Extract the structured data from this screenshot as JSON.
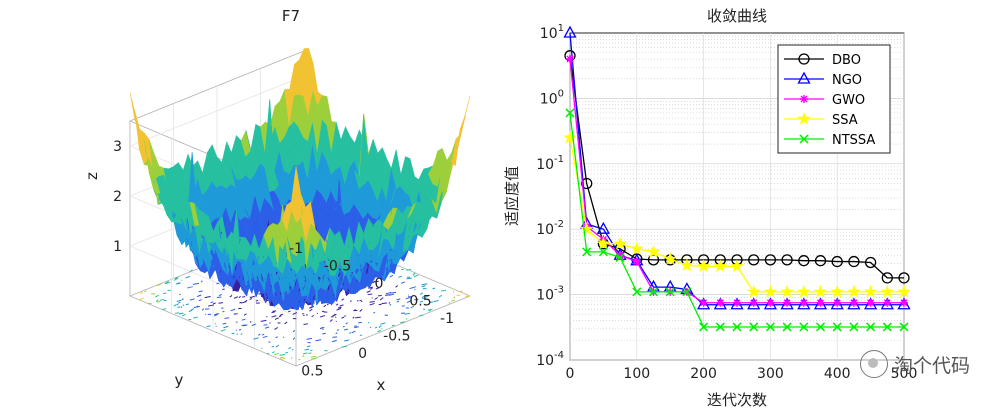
{
  "chart_data": [
    {
      "type": "surface",
      "title": "F7",
      "xlabel": "x",
      "ylabel": "y",
      "zlabel": "z",
      "xlim": [
        -1,
        1
      ],
      "ylim": [
        -1,
        1
      ],
      "zlim": [
        0,
        3.5
      ],
      "x_ticks": [
        "-1",
        "-0.5",
        "0",
        "0.5"
      ],
      "y_ticks": [
        "-1",
        "-0.5",
        "0",
        "0.5"
      ],
      "z_ticks": [
        "1",
        "2",
        "3"
      ],
      "colormap": [
        "#3a1fa0",
        "#2c5fe8",
        "#1e9ad9",
        "#26c0a0",
        "#9ccf3a",
        "#f1c232"
      ]
    },
    {
      "type": "line",
      "title": "收敛曲线",
      "xlabel": "迭代次数",
      "ylabel": "适应度值",
      "yscale": "log",
      "xlim": [
        0,
        500
      ],
      "ylim": [
        0.0001,
        10
      ],
      "x_ticks": [
        "0",
        "100",
        "200",
        "300",
        "400",
        "500"
      ],
      "y_ticks": [
        "10-4",
        "10-3",
        "10-2",
        "10-1",
        "100",
        "101"
      ],
      "grid": true,
      "legend_position": "top-right",
      "series": [
        {
          "name": "DBO",
          "color": "#000000",
          "marker": "circle",
          "x": [
            0,
            25,
            50,
            75,
            100,
            125,
            150,
            175,
            200,
            225,
            250,
            275,
            300,
            325,
            350,
            375,
            400,
            425,
            450,
            475,
            500
          ],
          "y": [
            4.5,
            0.05,
            0.006,
            0.005,
            0.0035,
            0.0034,
            0.0034,
            0.0034,
            0.0034,
            0.0034,
            0.0034,
            0.0034,
            0.0034,
            0.0034,
            0.0033,
            0.0033,
            0.0032,
            0.0032,
            0.0031,
            0.0018,
            0.0018
          ]
        },
        {
          "name": "NGO",
          "color": "#0000ff",
          "marker": "triangle",
          "x": [
            0,
            25,
            50,
            75,
            100,
            125,
            150,
            175,
            200,
            225,
            250,
            275,
            300,
            325,
            350,
            375,
            400,
            425,
            450,
            475,
            500
          ],
          "y": [
            10,
            0.012,
            0.01,
            0.004,
            0.0033,
            0.0013,
            0.0013,
            0.0012,
            0.0007,
            0.0007,
            0.0007,
            0.0007,
            0.0007,
            0.0007,
            0.0007,
            0.0007,
            0.0007,
            0.0007,
            0.0007,
            0.0007,
            0.0007
          ]
        },
        {
          "name": "GWO",
          "color": "#ff00ff",
          "marker": "star",
          "x": [
            0,
            25,
            50,
            75,
            100,
            125,
            150,
            175,
            200,
            225,
            250,
            275,
            300,
            325,
            350,
            375,
            400,
            425,
            450,
            475,
            500
          ],
          "y": [
            4.0,
            0.011,
            0.007,
            0.004,
            0.0032,
            0.0011,
            0.0011,
            0.0011,
            0.00075,
            0.00075,
            0.00075,
            0.00075,
            0.00075,
            0.00075,
            0.00075,
            0.00075,
            0.00075,
            0.00075,
            0.00075,
            0.00075,
            0.00075
          ]
        },
        {
          "name": "SSA",
          "color": "#ffff00",
          "marker": "pentagram",
          "x": [
            0,
            25,
            50,
            75,
            100,
            125,
            150,
            175,
            200,
            225,
            250,
            275,
            300,
            325,
            350,
            375,
            400,
            425,
            450,
            475,
            500
          ],
          "y": [
            0.25,
            0.01,
            0.006,
            0.006,
            0.005,
            0.0045,
            0.0035,
            0.0028,
            0.0027,
            0.0027,
            0.0027,
            0.0011,
            0.0011,
            0.0011,
            0.0011,
            0.0011,
            0.0011,
            0.0011,
            0.0011,
            0.0011,
            0.0011
          ]
        },
        {
          "name": "NTSSA",
          "color": "#00ee00",
          "marker": "x",
          "x": [
            0,
            25,
            50,
            75,
            100,
            125,
            150,
            175,
            200,
            225,
            250,
            275,
            300,
            325,
            350,
            375,
            400,
            425,
            450,
            475,
            500
          ],
          "y": [
            0.6,
            0.0045,
            0.0045,
            0.0037,
            0.0011,
            0.0011,
            0.0011,
            0.0011,
            0.00032,
            0.00032,
            0.00032,
            0.00032,
            0.00032,
            0.00032,
            0.00032,
            0.00032,
            0.00032,
            0.00032,
            0.00032,
            0.00032,
            0.00032
          ]
        }
      ]
    }
  ],
  "watermark": "淘个代码"
}
